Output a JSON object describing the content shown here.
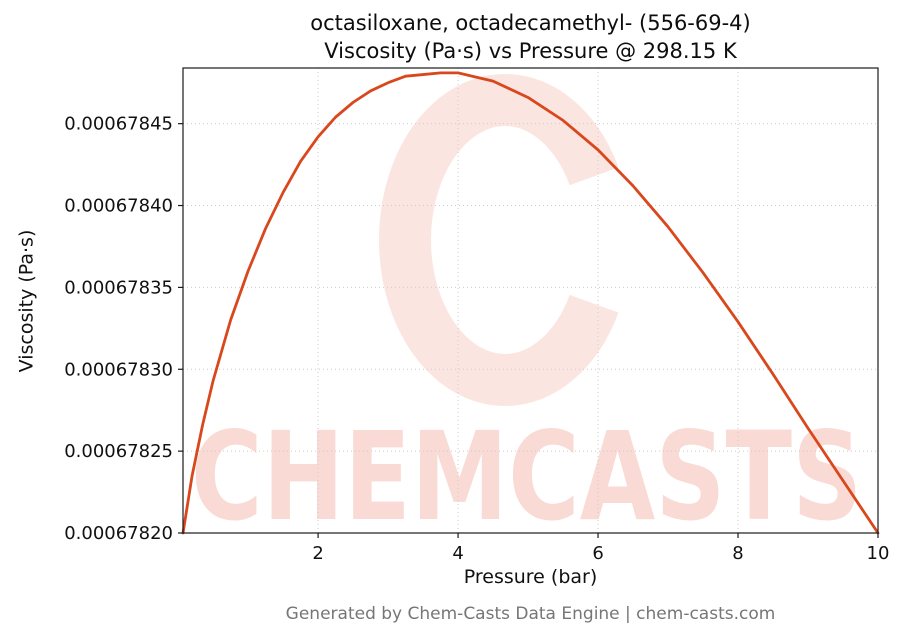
{
  "page": {
    "footer": "Generated by Chem-Casts Data Engine | chem-casts.com",
    "watermark_text": "CHEMCASTS",
    "watermark_icon": "c-ring",
    "watermark_color": "#e2442a"
  },
  "chart_data": {
    "type": "line",
    "title": "octasiloxane, octadecamethyl- (556-69-4)",
    "subtitle": "Viscosity (Pa·s) vs Pressure @ 298.15 K",
    "compound": "octasiloxane, octadecamethyl-",
    "cas": "556-69-4",
    "temperature_label": "298.15 K",
    "xlabel": "Pressure (bar)",
    "ylabel": "Viscosity (Pa·s)",
    "xlim": [
      0.07,
      10
    ],
    "ylim": [
      0.0006782,
      0.000678484
    ],
    "grid": "dotted",
    "legend": "none",
    "line_color": "#d9481d",
    "x_ticks": [
      {
        "value": 2,
        "label": "2"
      },
      {
        "value": 4,
        "label": "4"
      },
      {
        "value": 6,
        "label": "6"
      },
      {
        "value": 8,
        "label": "8"
      },
      {
        "value": 10,
        "label": "10"
      }
    ],
    "y_ticks": [
      {
        "value": 0.0006782,
        "label": "0.00067820"
      },
      {
        "value": 0.00067825,
        "label": "0.00067825"
      },
      {
        "value": 0.0006783,
        "label": "0.00067830"
      },
      {
        "value": 0.00067835,
        "label": "0.00067835"
      },
      {
        "value": 0.0006784,
        "label": "0.00067840"
      },
      {
        "value": 0.00067845,
        "label": "0.00067845"
      }
    ],
    "series": [
      {
        "name": "Viscosity (Pa·s)",
        "x": [
          0.07,
          0.2,
          0.35,
          0.5,
          0.75,
          1.0,
          1.25,
          1.5,
          1.75,
          2.0,
          2.25,
          2.5,
          2.75,
          3.0,
          3.25,
          3.5,
          3.75,
          4.0,
          4.5,
          5.0,
          5.5,
          6.0,
          6.5,
          7.0,
          7.5,
          8.0,
          8.5,
          9.0,
          9.5,
          10.0
        ],
        "y": [
          0.0006782,
          0.000678235,
          0.000678266,
          0.000678293,
          0.00067833,
          0.00067836,
          0.000678386,
          0.000678408,
          0.000678427,
          0.000678442,
          0.000678454,
          0.000678463,
          0.00067847,
          0.000678475,
          0.000678479,
          0.00067848,
          0.000678481,
          0.000678481,
          0.000678476,
          0.000678466,
          0.000678452,
          0.000678434,
          0.000678412,
          0.000678387,
          0.000678359,
          0.000678329,
          0.000678297,
          0.000678264,
          0.000678232,
          0.0006782
        ]
      }
    ]
  }
}
